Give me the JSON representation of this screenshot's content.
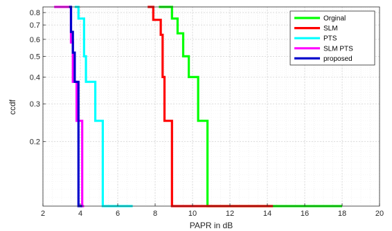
{
  "chart_data": {
    "type": "line",
    "title": "",
    "xlabel": "PAPR in dB",
    "ylabel": "ccdf",
    "xlim": [
      2,
      20
    ],
    "ylim": [
      0.1,
      0.85
    ],
    "yscale": "log",
    "grid": true,
    "legend_position": "top-right",
    "xticks": [
      "2",
      "4",
      "6",
      "8",
      "10",
      "12",
      "14",
      "16",
      "18",
      "20"
    ],
    "yticks": [
      {
        "value": 0.8,
        "label": "0.8"
      },
      {
        "value": 0.7,
        "label": "0.7"
      },
      {
        "value": 0.6,
        "label": "0.6"
      },
      {
        "value": 0.5,
        "label": "0.5"
      },
      {
        "value": 0.4,
        "label": "0.4"
      },
      {
        "value": 0.3,
        "label": "0.3"
      },
      {
        "value": 0.2,
        "label": "0.2"
      }
    ],
    "series": [
      {
        "name": "Orginal",
        "color": "#00ff00",
        "x": [
          8.2,
          8.9,
          8.9,
          9.2,
          9.2,
          9.5,
          9.5,
          9.8,
          9.8,
          10.3,
          10.3,
          10.8,
          10.8,
          18.0
        ],
        "y": [
          0.85,
          0.85,
          0.75,
          0.75,
          0.64,
          0.64,
          0.5,
          0.5,
          0.4,
          0.4,
          0.25,
          0.25,
          0.1,
          0.1
        ]
      },
      {
        "name": "SLM",
        "color": "#ff0000",
        "x": [
          7.6,
          7.9,
          7.9,
          8.3,
          8.3,
          8.4,
          8.4,
          8.5,
          8.5,
          8.9,
          8.9,
          14.3
        ],
        "y": [
          0.85,
          0.85,
          0.74,
          0.74,
          0.63,
          0.63,
          0.4,
          0.4,
          0.25,
          0.25,
          0.1,
          0.1
        ]
      },
      {
        "name": "PTS",
        "color": "#00ffff",
        "x": [
          3.7,
          3.9,
          3.9,
          4.2,
          4.2,
          4.3,
          4.3,
          4.8,
          4.8,
          5.2,
          5.2,
          6.8
        ],
        "y": [
          0.85,
          0.85,
          0.75,
          0.75,
          0.5,
          0.5,
          0.38,
          0.38,
          0.25,
          0.25,
          0.1,
          0.1
        ]
      },
      {
        "name": "SLM PTS",
        "color": "#ff00ff",
        "x": [
          2.6,
          3.5,
          3.5,
          3.6,
          3.6,
          3.8,
          3.8,
          4.1,
          4.1,
          4.2
        ],
        "y": [
          0.85,
          0.85,
          0.58,
          0.58,
          0.38,
          0.38,
          0.25,
          0.25,
          0.1,
          0.1
        ]
      },
      {
        "name": "proposed",
        "color": "#0000cc",
        "x": [
          3.4,
          3.5,
          3.5,
          3.6,
          3.6,
          3.7,
          3.7,
          3.9,
          3.9,
          4.1
        ],
        "y": [
          0.85,
          0.85,
          0.65,
          0.65,
          0.52,
          0.52,
          0.38,
          0.38,
          0.1,
          0.1
        ]
      }
    ]
  }
}
